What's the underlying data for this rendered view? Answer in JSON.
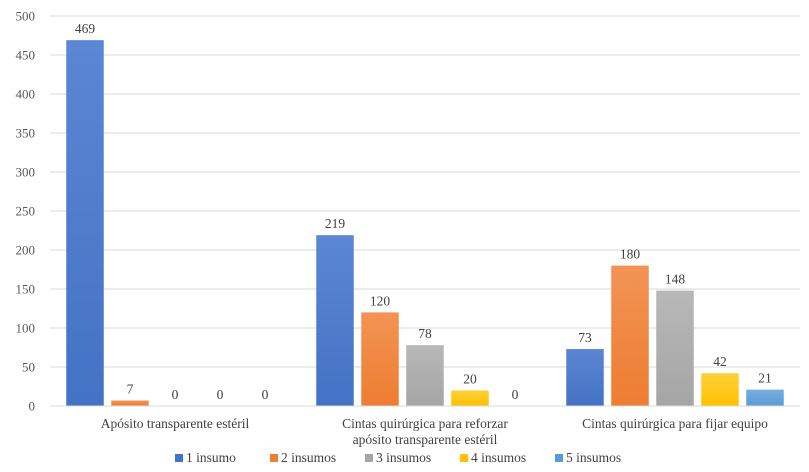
{
  "chart_data": {
    "type": "bar",
    "categories": [
      [
        "Apósito transparente estéril"
      ],
      [
        "Cintas quirúrgica para reforzar",
        "apósito transparente estéril"
      ],
      [
        "Cintas quirúrgica para fijar equipo"
      ]
    ],
    "series": [
      {
        "name": "1 insumo",
        "values": [
          469,
          219,
          73
        ],
        "color": "#4472C4",
        "color_light": "#5B86D3"
      },
      {
        "name": "2 insumos",
        "values": [
          7,
          120,
          180
        ],
        "color": "#ED7D31",
        "color_light": "#F29355"
      },
      {
        "name": "3 insumos",
        "values": [
          0,
          78,
          148
        ],
        "color": "#A5A5A5",
        "color_light": "#B8B8B8"
      },
      {
        "name": "4 insumos",
        "values": [
          0,
          20,
          42
        ],
        "color": "#FFC000",
        "color_light": "#FFD03A"
      },
      {
        "name": "5 insumos",
        "values": [
          0,
          0,
          21
        ],
        "color": "#5B9BD5",
        "color_light": "#77AEE0"
      }
    ],
    "yticks": [
      0,
      50,
      100,
      150,
      200,
      250,
      300,
      350,
      400,
      450,
      500
    ],
    "ylim": [
      0,
      500
    ],
    "grid": true,
    "legend": "bottom",
    "data_labels": true,
    "title": "",
    "xlabel": "",
    "ylabel": ""
  }
}
